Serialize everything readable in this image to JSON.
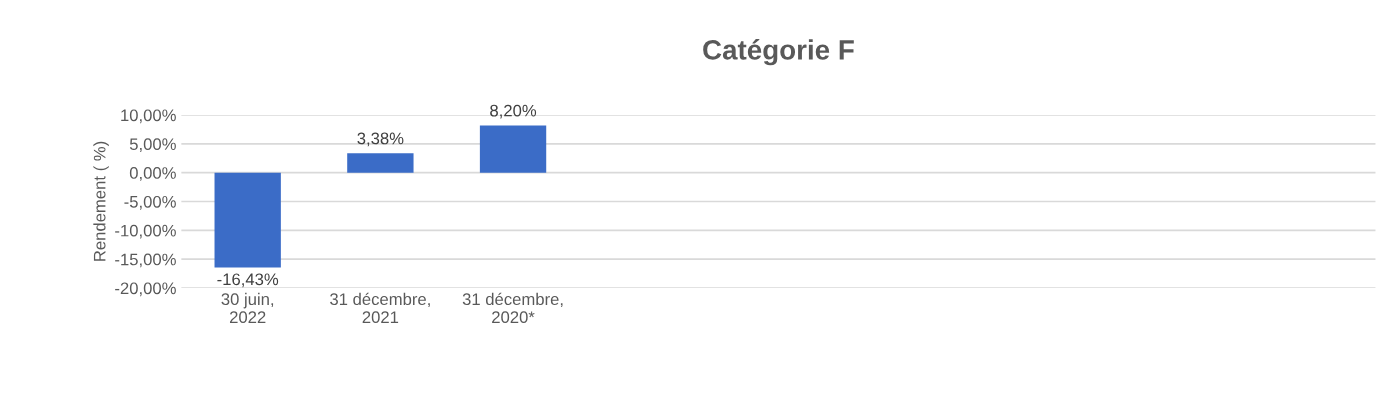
{
  "chart_data": {
    "type": "bar",
    "title": "Catégorie F",
    "ylabel": "Rendement ( %)",
    "categories": [
      "30 juin, 2022",
      "31 décembre, 2021",
      "31 décembre, 2020*",
      null,
      null,
      null,
      null,
      null,
      null
    ],
    "values": [
      -16.43,
      3.38,
      8.2,
      null,
      null,
      null,
      null,
      null,
      null
    ],
    "value_labels": [
      "-16,43%",
      "3,38%",
      "8,20%",
      null,
      null,
      null,
      null,
      null,
      null
    ],
    "color": "#3b6cc7",
    "ylim": [
      -20,
      10
    ],
    "yticks": [
      {
        "value": -20,
        "label": "-20,00%"
      },
      {
        "value": -15,
        "label": "-15,00%"
      },
      {
        "value": -10,
        "label": "-10,00%"
      },
      {
        "value": -5,
        "label": "-5,00%"
      },
      {
        "value": 0,
        "label": "0,00%"
      },
      {
        "value": 5,
        "label": "5,00%"
      },
      {
        "value": 10,
        "label": "10,00%"
      }
    ],
    "grid": "y",
    "legend": false
  }
}
